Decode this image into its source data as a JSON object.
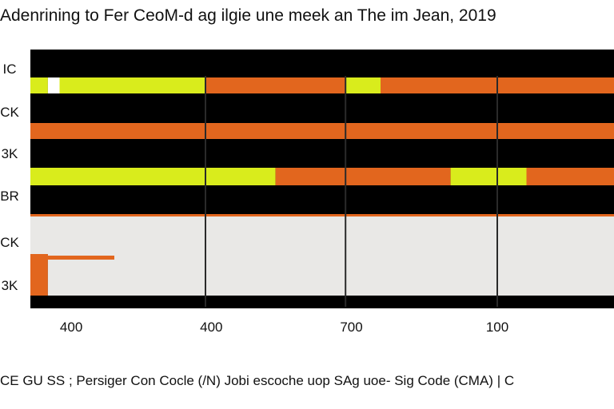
{
  "title": "Adenrining to Fer CeoM-d ag ilgie une meek an The im Jean, 2019",
  "footer": "CE GU SS ; Persiger Con Cocle (/N)   Jobi escoche uop SAg uoe- Sig Code (CMA)   |   C",
  "colors": {
    "background": "#000000",
    "yellow": "#d9ec1c",
    "orange": "#e2661e",
    "light_panel": "#e9e8e6",
    "highlight": "#ffffff",
    "divider": "#2a2a2a"
  },
  "chart_data": {
    "type": "bar",
    "title": "Adenrining to Fer CeoM-d ag ilgie une meek an The im Jean, 2019",
    "xlabel": "",
    "ylabel": "",
    "x_ticks": [
      "400",
      "400",
      "700",
      "100"
    ],
    "y_ticks": [
      "IC",
      "CK",
      "3K",
      "BR",
      "CK",
      "3K"
    ],
    "legend": "none",
    "grid": false,
    "rows": [
      {
        "label": "IC",
        "segments": []
      },
      {
        "label": "CK",
        "segments": [
          {
            "from": 0.0,
            "to": 0.03,
            "color": "yellow"
          },
          {
            "from": 0.03,
            "to": 0.05,
            "color": "highlight"
          },
          {
            "from": 0.05,
            "to": 0.3,
            "color": "yellow"
          },
          {
            "from": 0.3,
            "to": 0.54,
            "color": "orange"
          },
          {
            "from": 0.54,
            "to": 0.6,
            "color": "yellow"
          },
          {
            "from": 0.6,
            "to": 1.0,
            "color": "orange"
          }
        ]
      },
      {
        "label": "3K",
        "segments": [
          {
            "from": 0.0,
            "to": 1.0,
            "color": "orange"
          }
        ]
      },
      {
        "label": "BR",
        "segments": [
          {
            "from": 0.0,
            "to": 0.3,
            "color": "yellow"
          },
          {
            "from": 0.3,
            "to": 0.42,
            "color": "yellow"
          },
          {
            "from": 0.42,
            "to": 0.72,
            "color": "orange"
          },
          {
            "from": 0.72,
            "to": 0.8,
            "color": "yellow"
          },
          {
            "from": 0.8,
            "to": 0.85,
            "color": "yellow"
          },
          {
            "from": 0.85,
            "to": 1.0,
            "color": "orange"
          }
        ]
      },
      {
        "label": "CK",
        "segments": [
          {
            "from": 0.0,
            "to": 1.0,
            "color": "light_panel"
          }
        ]
      },
      {
        "label": "3K",
        "segments": [
          {
            "from": 0.0,
            "to": 0.03,
            "color": "orange"
          },
          {
            "from": 0.03,
            "to": 1.0,
            "color": "light_panel"
          }
        ]
      }
    ]
  }
}
